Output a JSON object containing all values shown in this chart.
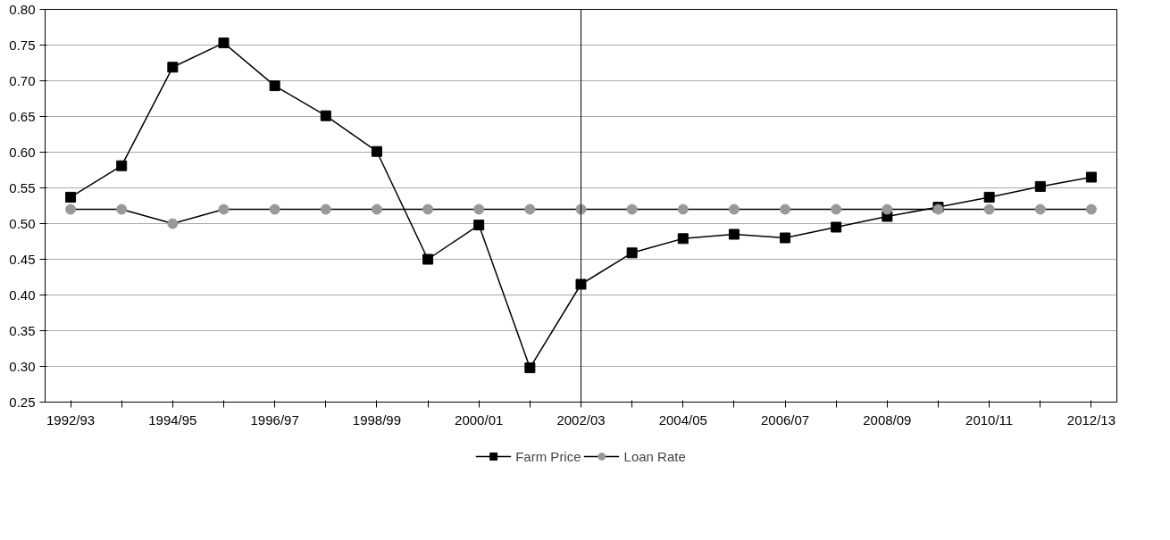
{
  "chart_data": {
    "type": "line",
    "categories": [
      "1992/93",
      null,
      "1994/95",
      null,
      "1996/97",
      null,
      "1998/99",
      null,
      "2000/01",
      null,
      "2002/03",
      null,
      "2004/05",
      null,
      "2006/07",
      null,
      "2008/09",
      null,
      "2010/11",
      null,
      "2012/13"
    ],
    "series": [
      {
        "name": "Farm Price",
        "color": "#000000",
        "marker": "square",
        "values": [
          0.537,
          0.581,
          0.719,
          0.753,
          0.693,
          0.651,
          0.601,
          0.45,
          0.498,
          0.298,
          0.415,
          0.459,
          0.479,
          0.485,
          0.48,
          0.495,
          0.51,
          0.523,
          0.537,
          0.552,
          0.565
        ]
      },
      {
        "name": "Loan Rate",
        "color": "#999999",
        "marker": "circle",
        "values": [
          0.52,
          0.52,
          0.5,
          0.52,
          0.52,
          0.52,
          0.52,
          0.52,
          0.52,
          0.52,
          0.52,
          0.52,
          0.52,
          0.52,
          0.52,
          0.52,
          0.52,
          0.52,
          0.52,
          0.52,
          0.52
        ]
      }
    ],
    "ylim": [
      0.25,
      0.8
    ],
    "yticks": [
      {
        "value": 0.25,
        "label": "0.25"
      },
      {
        "value": 0.3,
        "label": "0.30"
      },
      {
        "value": 0.35,
        "label": "0.35"
      },
      {
        "value": 0.4,
        "label": "0.40"
      },
      {
        "value": 0.45,
        "label": "0.45"
      },
      {
        "value": 0.5,
        "label": "0.50"
      },
      {
        "value": 0.55,
        "label": "0.55"
      },
      {
        "value": 0.6,
        "label": "0.60"
      },
      {
        "value": 0.65,
        "label": "0.65"
      },
      {
        "value": 0.7,
        "label": "0.70"
      },
      {
        "value": 0.75,
        "label": "0.75"
      },
      {
        "value": 0.8,
        "label": "0.80"
      }
    ],
    "ref_lines": [
      {
        "axis": "x",
        "value": "2002/03",
        "color": "#000000"
      }
    ],
    "grid": "y",
    "legend": "bottom",
    "line_style": "solid"
  }
}
